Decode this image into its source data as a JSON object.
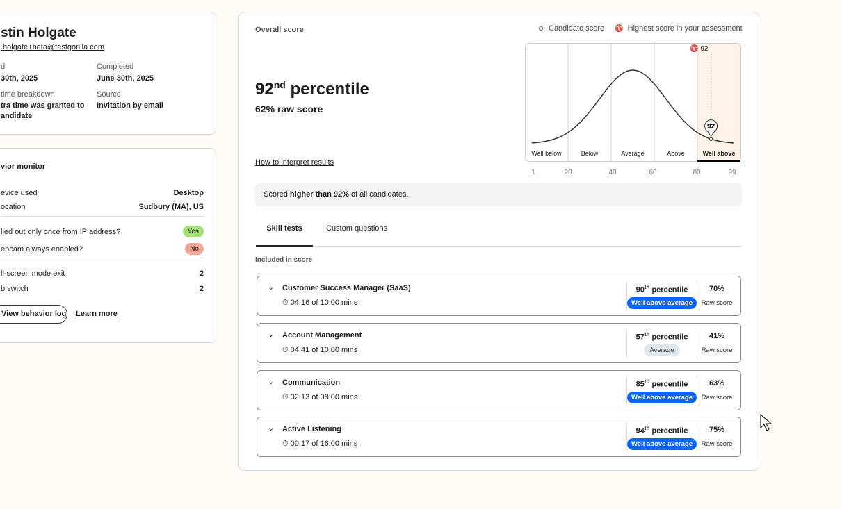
{
  "candidate": {
    "name": "stin Holgate",
    "email": ".holgate+beta@testgorilla.com",
    "fields": [
      {
        "label": "d",
        "value": "30th, 2025"
      },
      {
        "label": "Completed",
        "value": "June 30th, 2025"
      },
      {
        "label": "time breakdown",
        "value": "tra time was granted to",
        "value2": "andidate"
      },
      {
        "label": "Source",
        "value": "Invitation by email"
      }
    ]
  },
  "behavior": {
    "title": "vior monitor",
    "rows1": [
      {
        "label": "evice used",
        "value": "Desktop"
      },
      {
        "label": "ocation",
        "value": "Sudbury (MA), US"
      }
    ],
    "rows2": [
      {
        "label": "lled out only once from IP address?",
        "value": "Yes",
        "color": "#a6e07a"
      },
      {
        "label": "ebcam always enabled?",
        "value": "No",
        "color": "#f5a595"
      }
    ],
    "rows3": [
      {
        "label": "ll-screen mode exit",
        "value": "2"
      },
      {
        "label": "b switch",
        "value": "2"
      }
    ],
    "view_log": "View behavior log",
    "learn_more": "Learn more"
  },
  "overall": {
    "title": "Overall score",
    "percentile": "92",
    "suffix": "nd",
    "percentile_word": "percentile",
    "raw": "62% raw score",
    "interpret": "How to interpret results",
    "legend": {
      "candidate": "Candidate score",
      "highest": "Highest score in your assessment"
    },
    "summary_pre": "Scored ",
    "summary_bold": "higher than 92%",
    "summary_post": " of all candidates."
  },
  "chart_data": {
    "type": "line",
    "bands": [
      "Well below",
      "Below",
      "Average",
      "Above",
      "Well above"
    ],
    "ticks": [
      "1",
      "20",
      "40",
      "60",
      "80",
      "99"
    ],
    "candidate_score": 92,
    "highest_score": "92",
    "highlight_band": "Well above",
    "highlight_color": "#fff3e8"
  },
  "tabs": [
    {
      "label": "Skill tests",
      "active": true
    },
    {
      "label": "Custom questions"
    }
  ],
  "included_label": "Included in score",
  "tests": [
    {
      "name": "Customer Success Manager (SaaS)",
      "time": "04:16 of 10:00 mins",
      "pct": "90",
      "suf": "th",
      "badge": "Well above average",
      "badge_type": "wa",
      "raw": "70%"
    },
    {
      "name": "Account Management",
      "time": "04:41 of 10:00 mins",
      "pct": "57",
      "suf": "th",
      "badge": "Average",
      "badge_type": "avg",
      "raw": "41%"
    },
    {
      "name": "Communication",
      "time": "02:13 of 08:00 mins",
      "pct": "85",
      "suf": "th",
      "badge": "Well above average",
      "badge_type": "wa",
      "raw": "63%"
    },
    {
      "name": "Active Listening",
      "time": "00:17 of 16:00 mins",
      "pct": "94",
      "suf": "th",
      "badge": "Well above average",
      "badge_type": "wa",
      "raw": "75%"
    }
  ],
  "percentile_word": "percentile",
  "raw_label": "Raw score",
  "accent": "#0a66ff"
}
